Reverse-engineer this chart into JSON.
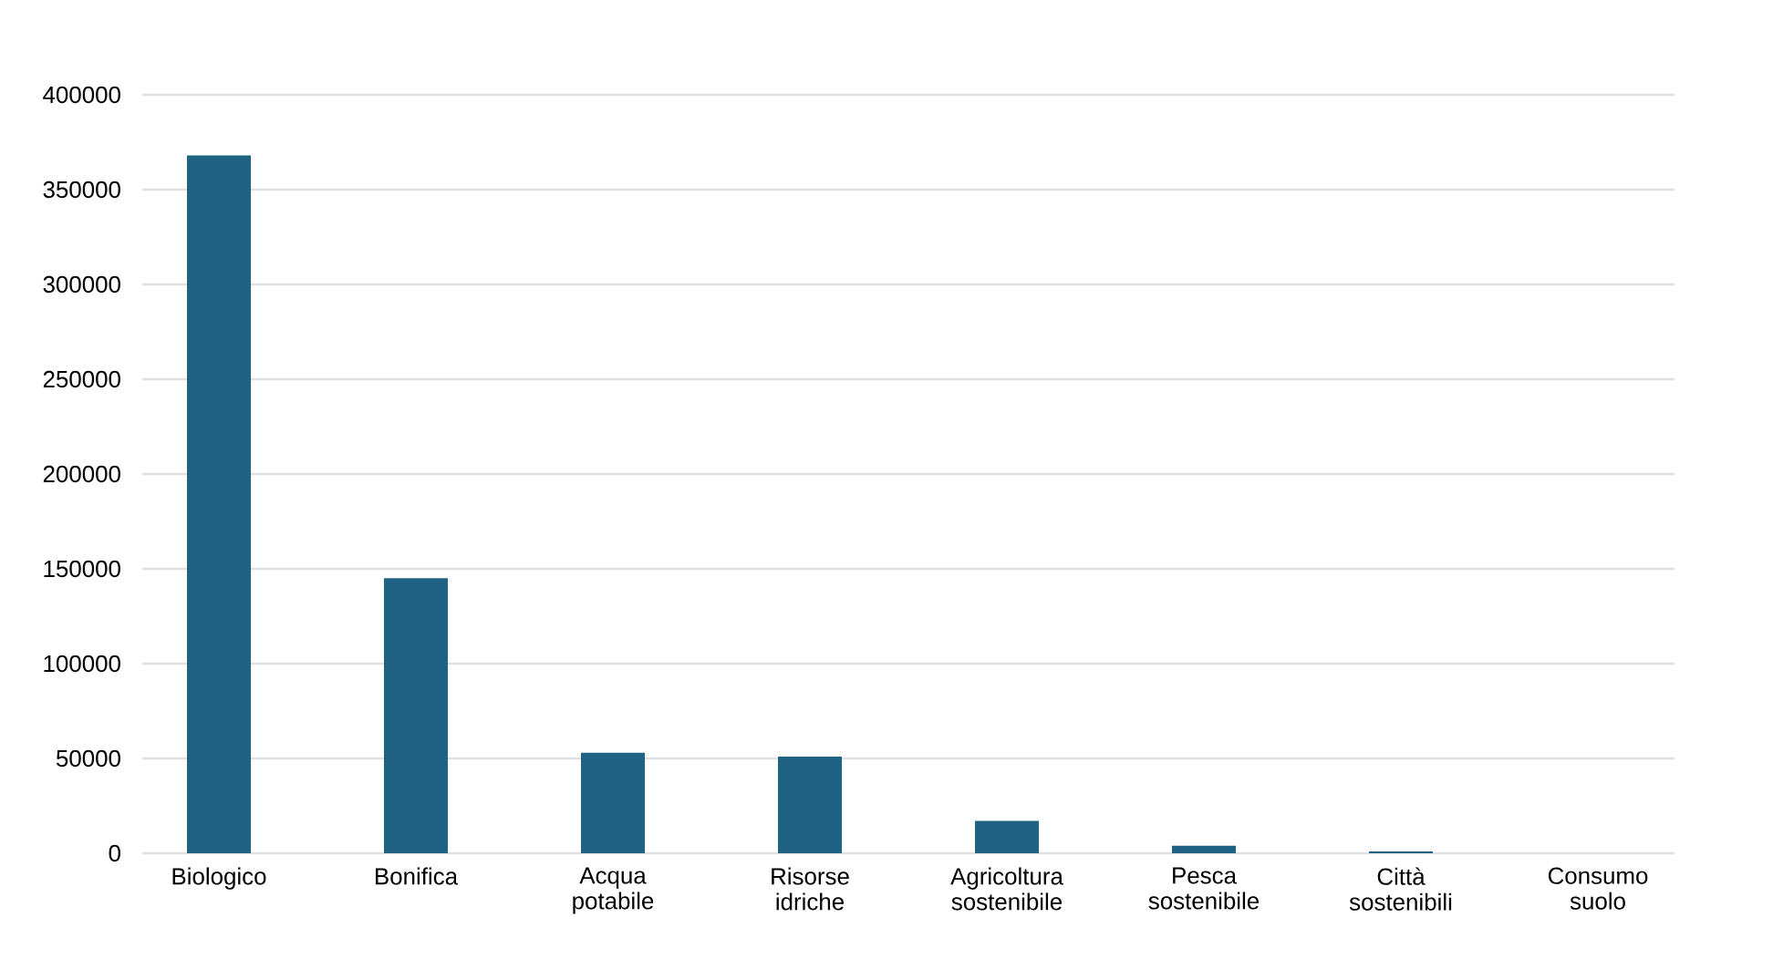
{
  "chart_data": {
    "type": "bar",
    "categories": [
      "Biologico",
      "Bonifica",
      "Acqua potabile",
      "Risorse idriche",
      "Agricoltura sostenibile",
      "Pesca sostenibile",
      "Città sostenibili",
      "Consumo suolo"
    ],
    "values": [
      368000,
      145000,
      53000,
      51000,
      17000,
      4000,
      1000,
      0
    ],
    "color": "#1f6283",
    "ylim": [
      0,
      400000
    ],
    "yticks": [
      0,
      50000,
      100000,
      150000,
      200000,
      250000,
      300000,
      350000,
      400000
    ],
    "grid": "y"
  }
}
